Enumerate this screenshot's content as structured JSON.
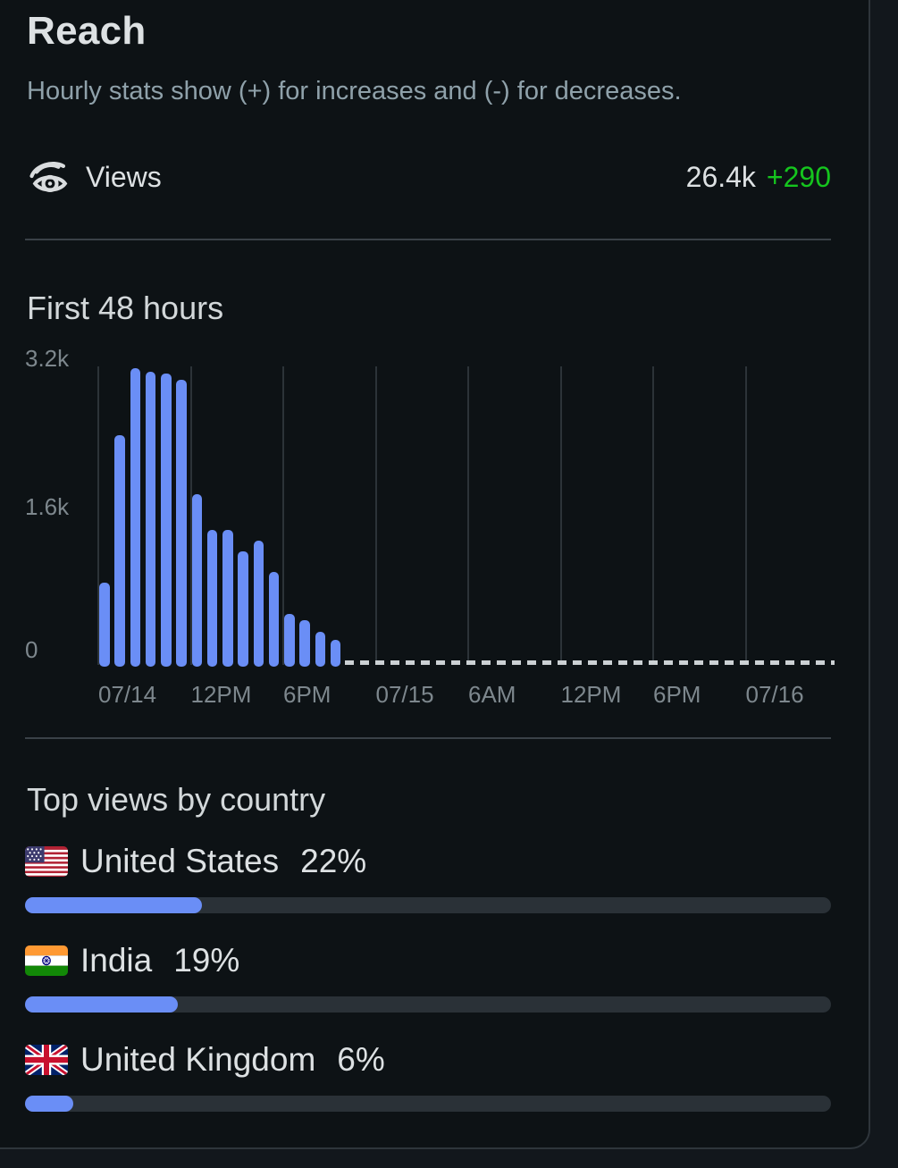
{
  "header": {
    "title": "Reach",
    "subtitle": "Hourly stats show (+) for increases and (-) for decreases."
  },
  "views_row": {
    "icon": "eye-views-icon",
    "label": "Views",
    "value": "26.4k",
    "delta": "+290"
  },
  "chart_data": {
    "type": "bar",
    "title": "First 48 hours",
    "y_ticks": [
      "3.2k",
      "1.6k",
      "0"
    ],
    "ylim": [
      0,
      3200
    ],
    "x_ticks": [
      "07/14",
      "12PM",
      "6PM",
      "07/15",
      "6AM",
      "12PM",
      "6PM",
      "07/16"
    ],
    "x_tick_interval_hours": 6,
    "total_hours": 48,
    "values": [
      900,
      2480,
      3200,
      3160,
      3140,
      3080,
      1850,
      1470,
      1470,
      1240,
      1350,
      1020,
      570,
      500,
      370,
      290
    ],
    "grid": "vertical",
    "future_hours_shown_as_dashed_baseline": true
  },
  "countries": {
    "heading": "Top views by country",
    "items": [
      {
        "flag": "us",
        "name": "United States",
        "percent_label": "22%",
        "percent": 22
      },
      {
        "flag": "in",
        "name": "India",
        "percent_label": "19%",
        "percent": 19
      },
      {
        "flag": "gb",
        "name": "United Kingdom",
        "percent_label": "6%",
        "percent": 6
      }
    ]
  },
  "colors": {
    "accent_blue": "#6a8ef6",
    "positive_green": "#15c51e",
    "track_gray": "#2a3137"
  }
}
